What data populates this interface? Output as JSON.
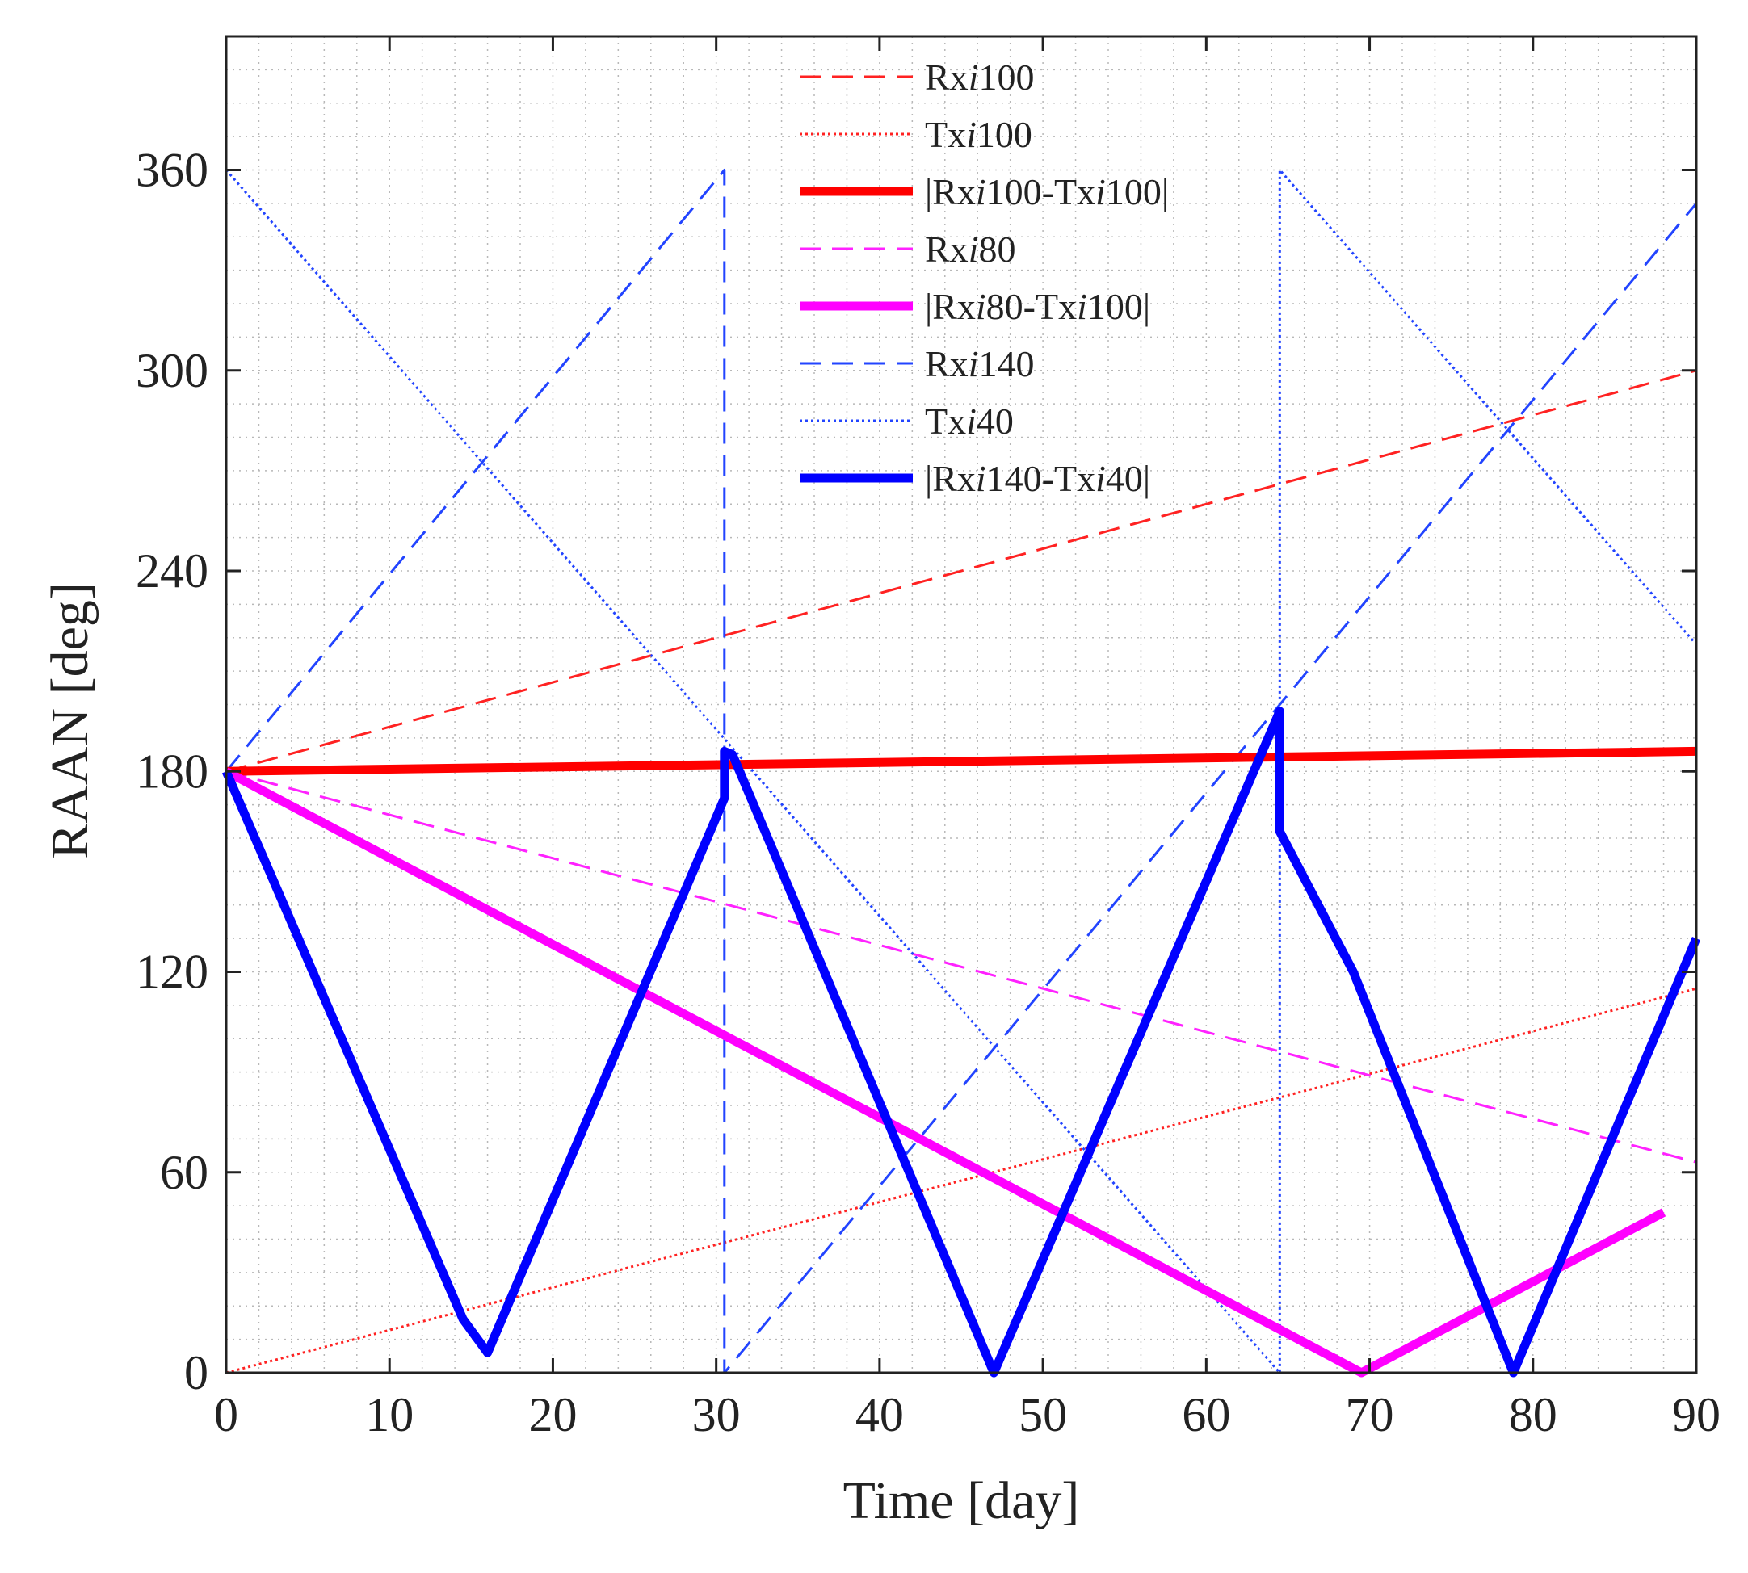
{
  "chart_data": {
    "type": "line",
    "xlabel": "Time [day]",
    "ylabel": "RAAN [deg]",
    "xlim": [
      0,
      90
    ],
    "ylim": [
      0,
      400
    ],
    "xticks": [
      0,
      10,
      20,
      30,
      40,
      50,
      60,
      70,
      80,
      90
    ],
    "yticks": [
      0,
      60,
      120,
      180,
      240,
      300,
      360
    ],
    "xtick_labels": [
      "0",
      "10",
      "20",
      "30",
      "40",
      "50",
      "60",
      "70",
      "80",
      "90"
    ],
    "ytick_labels": [
      "0",
      "60",
      "120",
      "180",
      "240",
      "300",
      "360"
    ],
    "grid": true,
    "legend_position": "top-center",
    "series": [
      {
        "name": "Rxi100",
        "label_prefix": "Rx",
        "label_italic": "i",
        "label_suffix": "100",
        "color": "#ff2222",
        "style": "dashed",
        "width": "thin",
        "x": [
          0,
          90
        ],
        "y": [
          180,
          300
        ]
      },
      {
        "name": "Txi100",
        "label_prefix": "Tx",
        "label_italic": "i",
        "label_suffix": "100",
        "color": "#ff2222",
        "style": "dotted",
        "width": "thin",
        "x": [
          0,
          90
        ],
        "y": [
          0,
          115
        ]
      },
      {
        "name": "|Rxi100-Txi100|",
        "label_prefix": "|Rx",
        "label_italic": "i",
        "label_suffix": "100-Tx",
        "label_italic2": "i",
        "label_suffix2": "100|",
        "color": "#ff0000",
        "style": "solid",
        "width": "thick",
        "x": [
          0,
          90
        ],
        "y": [
          180,
          186
        ]
      },
      {
        "name": "Rxi80",
        "label_prefix": "Rx",
        "label_italic": "i",
        "label_suffix": "80",
        "color": "#ff22ff",
        "style": "dashed",
        "width": "thin",
        "x": [
          0,
          90
        ],
        "y": [
          180,
          63
        ]
      },
      {
        "name": "|Rxi80-Txi100|",
        "label_prefix": "|Rx",
        "label_italic": "i",
        "label_suffix": "80-Tx",
        "label_italic2": "i",
        "label_suffix2": "100|",
        "color": "#ff00ff",
        "style": "solid",
        "width": "thick",
        "x": [
          0,
          69.5,
          88
        ],
        "y": [
          180,
          0,
          48
        ]
      },
      {
        "name": "Rxi140",
        "label_prefix": "Rx",
        "label_italic": "i",
        "label_suffix": "140",
        "color": "#2244ff",
        "style": "dashed",
        "width": "thin",
        "x": [
          0,
          30.5,
          30.5,
          90
        ],
        "y": [
          180,
          360,
          0,
          350
        ]
      },
      {
        "name": "Txi40",
        "label_prefix": "Tx",
        "label_italic": "i",
        "label_suffix": "40",
        "color": "#2244ff",
        "style": "dotted",
        "width": "thin",
        "x": [
          0,
          64.5,
          64.5,
          90
        ],
        "y": [
          360,
          0,
          360,
          218
        ]
      },
      {
        "name": "|Rxi140-Txi40|",
        "label_prefix": "|Rx",
        "label_italic": "i",
        "label_suffix": "140-Tx",
        "label_italic2": "i",
        "label_suffix2": "40|",
        "color": "#0000ff",
        "style": "solid",
        "width": "thick",
        "x": [
          0,
          14.5,
          16,
          30.5,
          30.5,
          31,
          47,
          64.5,
          64.5,
          69,
          78.8,
          90
        ],
        "y": [
          180,
          16,
          6,
          172,
          186,
          185,
          0,
          198,
          162,
          120,
          0,
          130
        ]
      }
    ]
  }
}
